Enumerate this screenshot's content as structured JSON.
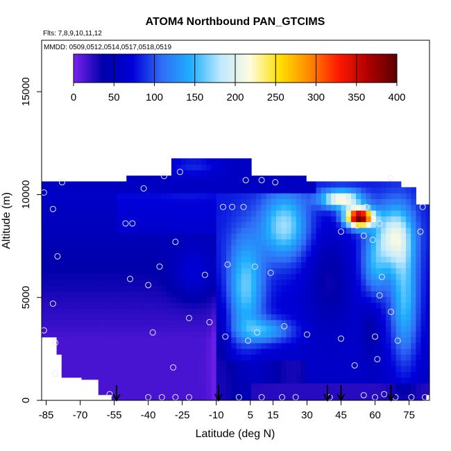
{
  "chart_data": {
    "type": "heatmap",
    "title": "ATOM4 Northbound PAN_GTCIMS",
    "subtitle_flights": "Flts: 7,8,9,10,11,12",
    "subtitle_dates": "MMDD: 0509,0512,0514,0517,0518,0519",
    "xlabel": "Latitude (deg N)",
    "ylabel": "Altitude (m)",
    "xlim": [
      -87,
      84
    ],
    "ylim": [
      0,
      17500
    ],
    "x_ticks": [
      -85,
      -70,
      -55,
      -40,
      -25,
      -10,
      5,
      15,
      30,
      45,
      60,
      75
    ],
    "y_ticks": [
      0,
      5000,
      10000,
      15000
    ],
    "colorbar": {
      "ticks": [
        0,
        50,
        100,
        150,
        200,
        250,
        300,
        350,
        400
      ],
      "range": [
        0,
        400
      ],
      "colors": [
        "#7b22ee",
        "#0000aa",
        "#0000d8",
        "#2f6ef5",
        "#1fb0ff",
        "#bfe8ff",
        "#fffce0",
        "#ffe000",
        "#ff8a00",
        "#ff1a00",
        "#b00000",
        "#5a0000"
      ]
    },
    "arrows_latitude": [
      -54,
      -9,
      39,
      45,
      67
    ],
    "samples": [
      {
        "lat": -86,
        "alt": 10100
      },
      {
        "lat": -82,
        "alt": 9300
      },
      {
        "lat": -78,
        "alt": 10600
      },
      {
        "lat": -80,
        "alt": 7000
      },
      {
        "lat": -82,
        "alt": 4700
      },
      {
        "lat": -81,
        "alt": 2800
      },
      {
        "lat": -81,
        "alt": 1300
      },
      {
        "lat": -86,
        "alt": 3400
      },
      {
        "lat": -57,
        "alt": 300
      },
      {
        "lat": -50,
        "alt": 8600
      },
      {
        "lat": -47,
        "alt": 8600
      },
      {
        "lat": -48,
        "alt": 5900
      },
      {
        "lat": -42,
        "alt": 10300
      },
      {
        "lat": -40,
        "alt": 5600
      },
      {
        "lat": -38,
        "alt": 3300
      },
      {
        "lat": -35,
        "alt": 6500
      },
      {
        "lat": -33,
        "alt": 10900
      },
      {
        "lat": -26,
        "alt": 11100
      },
      {
        "lat": -28,
        "alt": 7700
      },
      {
        "lat": -22,
        "alt": 4000
      },
      {
        "lat": -15,
        "alt": 6100
      },
      {
        "lat": -13,
        "alt": 3800
      },
      {
        "lat": -29,
        "alt": 1600
      },
      {
        "lat": -40,
        "alt": 150
      },
      {
        "lat": -34,
        "alt": 150
      },
      {
        "lat": -28,
        "alt": 150
      },
      {
        "lat": -22,
        "alt": 150
      },
      {
        "lat": -7,
        "alt": 9400
      },
      {
        "lat": -3,
        "alt": 9400
      },
      {
        "lat": 2,
        "alt": 9400
      },
      {
        "lat": -5,
        "alt": 6600
      },
      {
        "lat": -6,
        "alt": 3100
      },
      {
        "lat": 3,
        "alt": 10700
      },
      {
        "lat": 7,
        "alt": 6500
      },
      {
        "lat": 10,
        "alt": 10700
      },
      {
        "lat": 14,
        "alt": 6200
      },
      {
        "lat": 16,
        "alt": 10600
      },
      {
        "lat": 4,
        "alt": 2900
      },
      {
        "lat": 8,
        "alt": 3300
      },
      {
        "lat": 20,
        "alt": 3600
      },
      {
        "lat": 30,
        "alt": 3200
      },
      {
        "lat": 45,
        "alt": 3000
      },
      {
        "lat": 45,
        "alt": 8200
      },
      {
        "lat": 52,
        "alt": 8500
      },
      {
        "lat": 55,
        "alt": 8000
      },
      {
        "lat": 56,
        "alt": 9400
      },
      {
        "lat": 59,
        "alt": 7800
      },
      {
        "lat": 62,
        "alt": 8600
      },
      {
        "lat": 60,
        "alt": 3100
      },
      {
        "lat": 62,
        "alt": 5100
      },
      {
        "lat": 63,
        "alt": 6000
      },
      {
        "lat": 67,
        "alt": 4300
      },
      {
        "lat": 70,
        "alt": 2900
      },
      {
        "lat": 67,
        "alt": 10800
      },
      {
        "lat": 80,
        "alt": 8200
      },
      {
        "lat": 81,
        "alt": 9400
      },
      {
        "lat": 51,
        "alt": 1700
      },
      {
        "lat": 61,
        "alt": 2000
      },
      {
        "lat": 64,
        "alt": 300
      },
      {
        "lat": 55,
        "alt": 250
      },
      {
        "lat": 0,
        "alt": 150
      },
      {
        "lat": 10,
        "alt": 150
      },
      {
        "lat": 19,
        "alt": 150
      },
      {
        "lat": 25,
        "alt": 150
      },
      {
        "lat": 40,
        "alt": 150
      },
      {
        "lat": 60,
        "alt": 150
      },
      {
        "lat": 69,
        "alt": 150
      },
      {
        "lat": 76,
        "alt": 150
      },
      {
        "lat": 82,
        "alt": 150
      }
    ]
  }
}
